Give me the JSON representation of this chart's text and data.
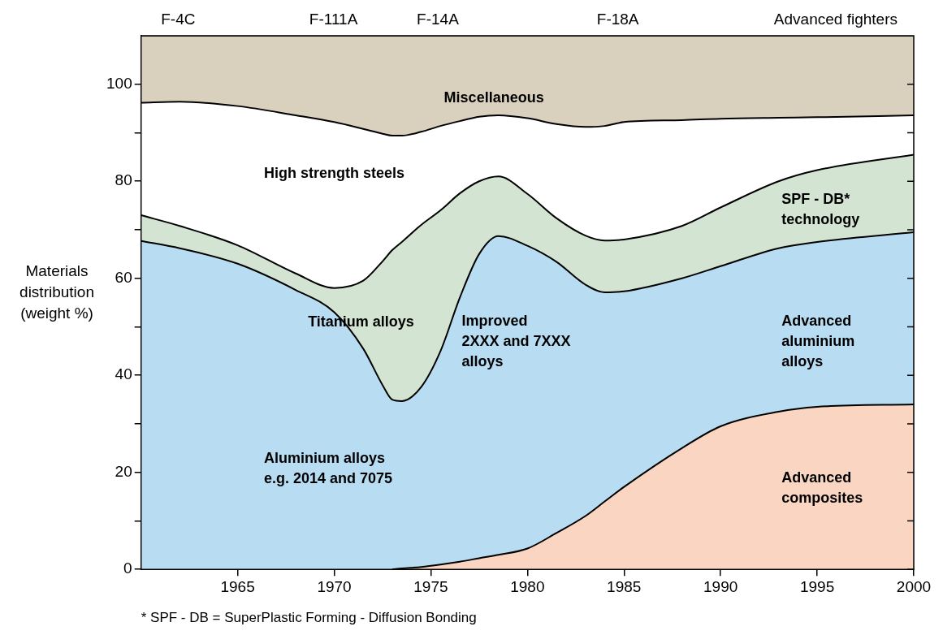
{
  "chart_data": {
    "type": "area",
    "stacked": true,
    "ylabel": "Materials\ndistribution\n(weight %)",
    "x": [
      1960,
      1962,
      1965,
      1968,
      1970,
      1971.5,
      1972.5,
      1973,
      1973.5,
      1974.5,
      1975.5,
      1976.5,
      1977.5,
      1978.5,
      1980,
      1981.5,
      1983,
      1984,
      1985,
      1988,
      1990,
      1993,
      1995,
      2000
    ],
    "xlim": [
      1960,
      2000
    ],
    "xticks": [
      1965,
      1970,
      1975,
      1980,
      1985,
      1990,
      1995,
      2000
    ],
    "ylim": [
      0,
      110
    ],
    "yticks": [
      0,
      {
        "value": 10,
        "label": null
      },
      20,
      {
        "value": 30,
        "label": null
      },
      40,
      {
        "value": 50,
        "label": null
      },
      60,
      {
        "value": 70,
        "label": null
      },
      80,
      {
        "value": 90,
        "label": null
      },
      100
    ],
    "grid": false,
    "legend": false,
    "series": [
      {
        "color": "#f9d5c2",
        "values": [
          null,
          null,
          null,
          null,
          null,
          null,
          null,
          0,
          0.2,
          0.5,
          1,
          1.6,
          2.3,
          3,
          4.3,
          7.5,
          11,
          14,
          17,
          25,
          29.5,
          32.5,
          33.5,
          34
        ]
      },
      {
        "color": "#b8ddf3",
        "values": [
          67.7,
          66.2,
          63,
          57.6,
          53,
          45.5,
          38,
          35,
          34.5,
          37.1,
          44,
          54.4,
          62.7,
          65.7,
          62.4,
          55.9,
          47.7,
          43.1,
          40.3,
          35,
          33,
          33.7,
          34,
          35.5
        ]
      },
      {
        "color": "#d3e4d2",
        "values": [
          5.3,
          4.6,
          3.8,
          3.4,
          5,
          14,
          25.5,
          30.8,
          32.8,
          33.4,
          29,
          21.5,
          15,
          12.3,
          10.7,
          9,
          10.1,
          10.7,
          10.7,
          10.8,
          12.1,
          13.8,
          14.8,
          16
        ]
      },
      {
        "color": "#ffffff",
        "values": [
          23.2,
          25.6,
          28.7,
          32.6,
          34.2,
          31.3,
          26.3,
          23.6,
          21.9,
          19.2,
          17.4,
          14.9,
          13.3,
          12.6,
          15.6,
          19.4,
          22.4,
          23.6,
          24.2,
          21.8,
          18.3,
          13.1,
          10.9,
          8.1
        ]
      },
      {
        "color": "#d9d1bd",
        "values": [
          13.8,
          13.6,
          14.5,
          16.4,
          17.8,
          19.2,
          20.2,
          20.6,
          20.6,
          19.8,
          18.6,
          17.6,
          16.7,
          16.4,
          17,
          18.2,
          18.8,
          18.6,
          17.8,
          17.4,
          17.1,
          16.9,
          16.8,
          16.4
        ]
      }
    ],
    "annotations": [
      "F-4C",
      "F-111A",
      "F-14A",
      "F-18A",
      "Advanced fighters",
      "Miscellaneous",
      "High strength steels",
      "SPF - DB*\ntechnology",
      "Titanium alloys",
      "Improved\n2XXX and 7XXX\nalloys",
      "Advanced\naluminium\nalloys",
      "Aluminium alloys\ne.g. 2014 and 7075",
      "Advanced\ncomposites",
      "* SPF - DB = SuperPlastic Forming - Diffusion Bonding"
    ]
  }
}
